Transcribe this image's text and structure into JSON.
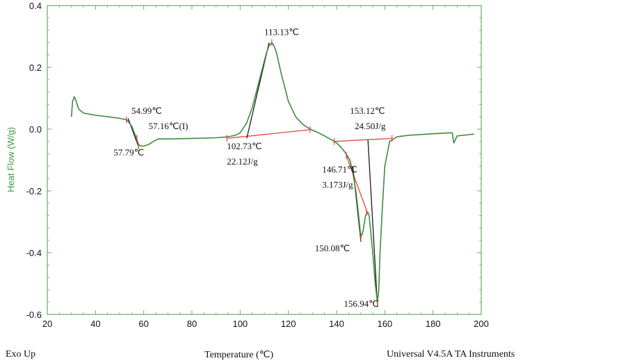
{
  "chart_data": {
    "type": "line",
    "ylabel": "Heat Flow (W/g)",
    "xlabel": "Temperature (℃)",
    "xlim": [
      20,
      200
    ],
    "ylim": [
      -0.6,
      0.4
    ],
    "xticks": [
      20,
      40,
      60,
      80,
      100,
      120,
      140,
      160,
      180,
      200
    ],
    "yticks": [
      0.4,
      0.2,
      0.0,
      -0.2,
      -0.4,
      -0.6
    ],
    "ytick_labels": [
      "0.4",
      "0.2",
      "0.0",
      "-0.2",
      "-0.4",
      "-0.6"
    ],
    "grid": false,
    "colors": {
      "curve": "#3c8c3c",
      "baseline": "#e84040",
      "tangent": "#1a1a1a",
      "frame": "#6aaa6a"
    },
    "series": [
      {
        "x": [
          30.0,
          30.5,
          31.2,
          32.0,
          33.0,
          35.0,
          40.0,
          45.0,
          50.0,
          53.0,
          55.0,
          56.0,
          57.0,
          57.8,
          59.0,
          60.0,
          62.0,
          64.0,
          66.0,
          70.0,
          80.0,
          90.0,
          95.0,
          98.0,
          100.0,
          102.7,
          105.0,
          108.0,
          110.0,
          111.0,
          112.0,
          113.13,
          114.0,
          115.0,
          117.0,
          120.0,
          123.0,
          126.0,
          129.0,
          132.0,
          135.0,
          138.0,
          140.0,
          142.0,
          144.0,
          145.5,
          146.7,
          148.0,
          149.0,
          150.08,
          151.0,
          152.0,
          153.0,
          153.5,
          154.0,
          155.0,
          156.0,
          156.94,
          157.5,
          158.0,
          159.0,
          160.0,
          162.0,
          165.0,
          170.0,
          180.0,
          188.0,
          188.6,
          189.2,
          190.0,
          195.0,
          197.0
        ],
        "y": [
          0.04,
          0.09,
          0.105,
          0.09,
          0.065,
          0.052,
          0.045,
          0.04,
          0.035,
          0.03,
          0.01,
          -0.01,
          -0.03,
          -0.05,
          -0.055,
          -0.055,
          -0.05,
          -0.04,
          -0.032,
          -0.032,
          -0.03,
          -0.028,
          -0.025,
          -0.02,
          -0.012,
          0.02,
          0.07,
          0.16,
          0.22,
          0.25,
          0.27,
          0.28,
          0.27,
          0.25,
          0.18,
          0.09,
          0.04,
          0.015,
          0.0,
          -0.01,
          -0.022,
          -0.035,
          -0.045,
          -0.06,
          -0.08,
          -0.1,
          -0.14,
          -0.2,
          -0.27,
          -0.35,
          -0.33,
          -0.28,
          -0.27,
          -0.28,
          -0.32,
          -0.4,
          -0.5,
          -0.56,
          -0.52,
          -0.4,
          -0.25,
          -0.12,
          -0.04,
          -0.025,
          -0.02,
          -0.015,
          -0.012,
          -0.045,
          -0.035,
          -0.022,
          -0.018,
          -0.016
        ]
      }
    ],
    "annotations": [
      {
        "text": "113.13℃",
        "x": 110.0,
        "y": 0.305,
        "anchor": "start"
      },
      {
        "text": "54.99℃",
        "x": 54.9,
        "y": 0.05,
        "anchor": "start"
      },
      {
        "text": "57.16℃(I)",
        "x": 62.0,
        "y": 0.0,
        "anchor": "start"
      },
      {
        "text": "57.79℃",
        "x": 47.5,
        "y": -0.085,
        "anchor": "start"
      },
      {
        "text": "102.73℃",
        "x": 94.5,
        "y": -0.065,
        "anchor": "start"
      },
      {
        "text": "22.12J/g",
        "x": 94.5,
        "y": -0.115,
        "anchor": "start"
      },
      {
        "text": "153.12℃",
        "x": 145.5,
        "y": 0.05,
        "anchor": "start"
      },
      {
        "text": "24.50J/g",
        "x": 147.5,
        "y": 0.0,
        "anchor": "start"
      },
      {
        "text": "146.71℃",
        "x": 134.0,
        "y": -0.14,
        "anchor": "start"
      },
      {
        "text": "3.173J/g",
        "x": 134.0,
        "y": -0.19,
        "anchor": "start"
      },
      {
        "text": "150.08℃",
        "x": 131.0,
        "y": -0.395,
        "anchor": "start"
      },
      {
        "text": "156.94℃",
        "x": 143.0,
        "y": -0.575,
        "anchor": "start"
      }
    ],
    "baselines": [
      {
        "x": [
          94.5,
          129.0
        ],
        "y": [
          -0.03,
          -0.002
        ]
      },
      {
        "x": [
          139.0,
          163.0
        ],
        "y": [
          -0.04,
          -0.03
        ]
      },
      {
        "x": [
          144.0,
          153.0
        ],
        "y": [
          -0.085,
          -0.275
        ]
      }
    ],
    "tangents": [
      {
        "x": [
          102.73,
          112.0
        ],
        "y": [
          -0.03,
          0.28
        ]
      },
      {
        "x": [
          53.5,
          58.0
        ],
        "y": [
          0.035,
          -0.06
        ]
      },
      {
        "x": [
          146.71,
          150.08
        ],
        "y": [
          -0.12,
          -0.365
        ]
      },
      {
        "x": [
          153.0,
          156.94
        ],
        "y": [
          -0.035,
          -0.57
        ]
      }
    ],
    "tickmarks": [
      {
        "x": 52.8,
        "y": 0.03
      },
      {
        "x": 57.2,
        "y": -0.03
      },
      {
        "x": 57.8,
        "y": -0.055
      },
      {
        "x": 94.5,
        "y": -0.03
      },
      {
        "x": 129.0,
        "y": -0.002
      },
      {
        "x": 139.0,
        "y": -0.04
      },
      {
        "x": 163.0,
        "y": -0.03
      },
      {
        "x": 113.13,
        "y": 0.28
      },
      {
        "x": 156.94,
        "y": -0.565
      },
      {
        "x": 150.08,
        "y": -0.35
      },
      {
        "x": 152.3,
        "y": -0.27
      },
      {
        "x": 144.0,
        "y": -0.085
      }
    ]
  },
  "footer": {
    "left": "Exo Up",
    "center": "Temperature (℃)",
    "right": "Universal V4.5A TA Instruments"
  }
}
